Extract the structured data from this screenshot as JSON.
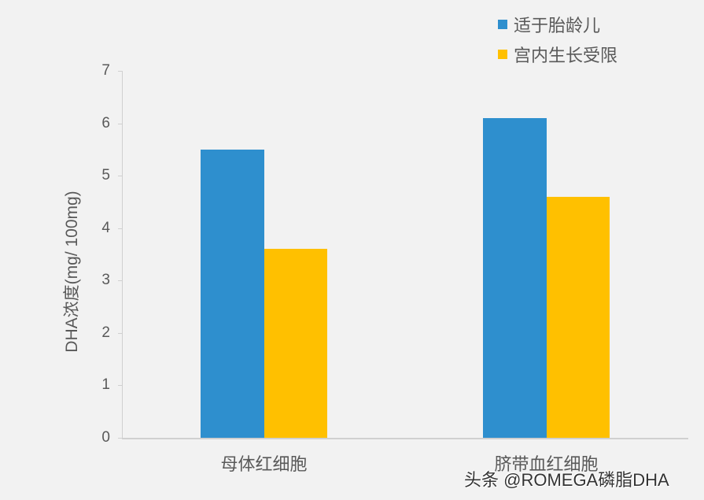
{
  "chart_data": {
    "type": "bar",
    "title": "",
    "xlabel": "",
    "ylabel": "DHA浓度(mg/ 100mg)",
    "ylim": [
      0,
      7
    ],
    "yticks": [
      "0",
      "1",
      "2",
      "3",
      "4",
      "5",
      "6",
      "7"
    ],
    "categories": [
      "母体红细胞",
      "脐带血红细胞"
    ],
    "series": [
      {
        "name": "适于胎龄儿",
        "color": "#2e8fce",
        "values": [
          5.5,
          6.1
        ]
      },
      {
        "name": "宫内生长受限",
        "color": "#ffc000",
        "values": [
          3.6,
          4.6
        ]
      }
    ],
    "grid": false,
    "legend_position": "top-right"
  },
  "legend": [
    {
      "label": "适于胎龄儿",
      "color": "#2e8fce"
    },
    {
      "label": "宫内生长受限",
      "color": "#ffc000"
    }
  ],
  "watermark": "头条 @ROMEGA磷脂DHA"
}
